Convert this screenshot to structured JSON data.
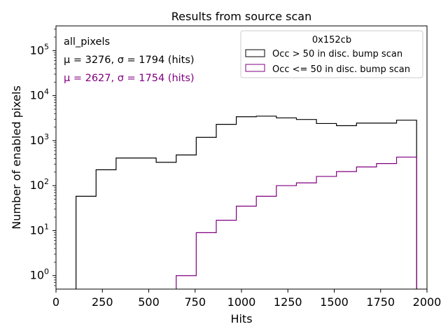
{
  "chart_data": {
    "type": "histogram",
    "title": "Results from source scan",
    "xlabel": "Hits",
    "ylabel": "Number of enabled pixels",
    "xlim": [
      0,
      2000
    ],
    "ylim_log10": [
      -0.3,
      5.55
    ],
    "yscale": "log",
    "x_ticks": [
      0,
      250,
      500,
      750,
      1000,
      1250,
      1500,
      1750,
      2000
    ],
    "x_tick_labels": [
      "0",
      "250",
      "500",
      "750",
      "1000",
      "1250",
      "1500",
      "1750",
      "2000"
    ],
    "y_tick_exponents": [
      0,
      1,
      2,
      3,
      4,
      5
    ],
    "y_tick_base": "10",
    "bin_edges": [
      0,
      108,
      216,
      324,
      432,
      540,
      648,
      756,
      864,
      972,
      1080,
      1188,
      1296,
      1404,
      1512,
      1620,
      1728,
      1836,
      1944
    ],
    "series": [
      {
        "name": "Occ > 50 in disc. bump scan",
        "color": "#000000",
        "values": [
          0,
          58,
          225,
          410,
          410,
          330,
          480,
          1180,
          2300,
          3400,
          3500,
          3200,
          2950,
          2400,
          2150,
          2450,
          2450,
          2850
        ]
      },
      {
        "name": "Occ <= 50 in disc. bump scan",
        "color": "#800080",
        "values": [
          0,
          0,
          0,
          0,
          0,
          0,
          1,
          9,
          17,
          35,
          58,
          100,
          115,
          160,
          205,
          260,
          310,
          430
        ]
      }
    ],
    "legend": {
      "title": "0x152cb",
      "position": "top-right"
    },
    "annotations": [
      {
        "label": "all_pixels",
        "color": "#000000"
      },
      {
        "label": "μ = 3276, σ = 1794 (hits)",
        "color": "#000000"
      },
      {
        "label": "μ = 2627, σ = 1754 (hits)",
        "color": "#800080"
      }
    ]
  }
}
